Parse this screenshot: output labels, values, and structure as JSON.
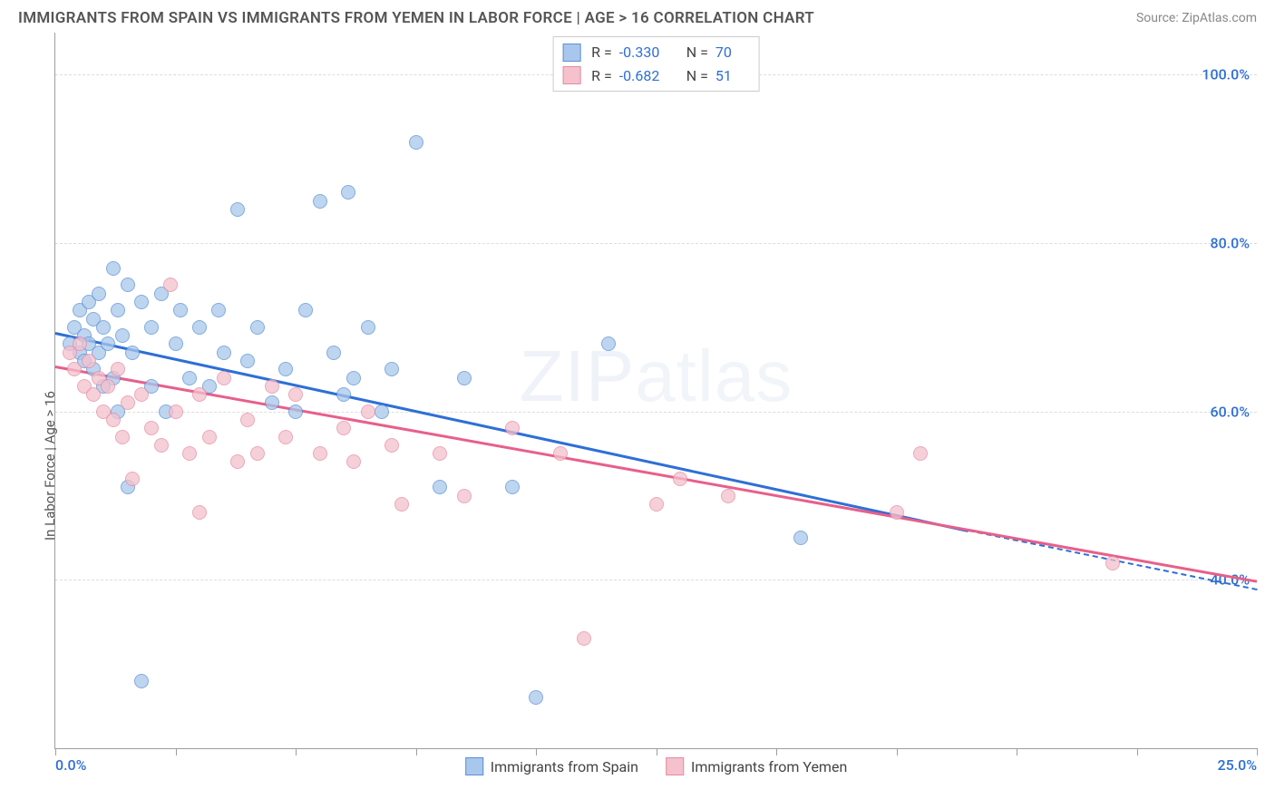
{
  "header": {
    "title": "IMMIGRANTS FROM SPAIN VS IMMIGRANTS FROM YEMEN IN LABOR FORCE | AGE > 16 CORRELATION CHART",
    "source": "Source: ZipAtlas.com"
  },
  "watermark": "ZIPatlas",
  "chart": {
    "type": "scatter",
    "background_color": "#ffffff",
    "grid_color": "#dddddd",
    "border_color": "#9e9e9e",
    "axis_label_color": "#555555",
    "tick_label_color": "#2e6fd6",
    "xlim": [
      0,
      25
    ],
    "ylim": [
      20,
      105
    ],
    "x_axis": {
      "min_label": "0.0%",
      "max_label": "25.0%",
      "tick_positions": [
        0,
        2.5,
        5,
        7.5,
        10,
        12.5,
        15,
        17.5,
        20,
        22.5,
        25
      ]
    },
    "y_axis": {
      "label": "In Labor Force | Age > 16",
      "gridlines": [
        40,
        60,
        80,
        100
      ],
      "tick_labels": [
        "40.0%",
        "60.0%",
        "80.0%",
        "100.0%"
      ]
    },
    "marker_radius": 8,
    "marker_border_width": 1.5,
    "marker_fill_opacity": 0.35,
    "series": [
      {
        "name": "Immigrants from Spain",
        "color_fill": "#a9c7ec",
        "color_stroke": "#5a8fd6",
        "trend_color": "#2e6fd6",
        "points": [
          [
            0.3,
            68
          ],
          [
            0.4,
            70
          ],
          [
            0.5,
            67
          ],
          [
            0.5,
            72
          ],
          [
            0.6,
            66
          ],
          [
            0.6,
            69
          ],
          [
            0.7,
            68
          ],
          [
            0.7,
            73
          ],
          [
            0.8,
            65
          ],
          [
            0.8,
            71
          ],
          [
            0.9,
            67
          ],
          [
            0.9,
            74
          ],
          [
            1.0,
            70
          ],
          [
            1.0,
            63
          ],
          [
            1.1,
            68
          ],
          [
            1.2,
            77
          ],
          [
            1.2,
            64
          ],
          [
            1.3,
            72
          ],
          [
            1.3,
            60
          ],
          [
            1.4,
            69
          ],
          [
            1.5,
            75
          ],
          [
            1.5,
            51
          ],
          [
            1.6,
            67
          ],
          [
            1.8,
            73
          ],
          [
            1.8,
            28
          ],
          [
            2.0,
            70
          ],
          [
            2.0,
            63
          ],
          [
            2.2,
            74
          ],
          [
            2.3,
            60
          ],
          [
            2.5,
            68
          ],
          [
            2.6,
            72
          ],
          [
            2.8,
            64
          ],
          [
            3.0,
            70
          ],
          [
            3.2,
            63
          ],
          [
            3.4,
            72
          ],
          [
            3.5,
            67
          ],
          [
            3.8,
            84
          ],
          [
            4.0,
            66
          ],
          [
            4.2,
            70
          ],
          [
            4.5,
            61
          ],
          [
            4.8,
            65
          ],
          [
            5.0,
            60
          ],
          [
            5.2,
            72
          ],
          [
            5.5,
            85
          ],
          [
            5.8,
            67
          ],
          [
            6.0,
            62
          ],
          [
            6.1,
            86
          ],
          [
            6.2,
            64
          ],
          [
            6.5,
            70
          ],
          [
            6.8,
            60
          ],
          [
            7.0,
            65
          ],
          [
            7.5,
            92
          ],
          [
            8.0,
            51
          ],
          [
            8.5,
            64
          ],
          [
            9.5,
            51
          ],
          [
            10.0,
            26
          ],
          [
            11.5,
            68
          ],
          [
            15.5,
            45
          ]
        ],
        "trendline": {
          "x1": 0,
          "y1": 69.5,
          "x2": 19,
          "y2": 46,
          "dashed_x2": 25,
          "dashed_y2": 39
        }
      },
      {
        "name": "Immigrants from Yemen",
        "color_fill": "#f4c1cd",
        "color_stroke": "#e68aa3",
        "trend_color": "#e85f8a",
        "points": [
          [
            0.3,
            67
          ],
          [
            0.4,
            65
          ],
          [
            0.5,
            68
          ],
          [
            0.6,
            63
          ],
          [
            0.7,
            66
          ],
          [
            0.8,
            62
          ],
          [
            0.9,
            64
          ],
          [
            1.0,
            60
          ],
          [
            1.1,
            63
          ],
          [
            1.2,
            59
          ],
          [
            1.3,
            65
          ],
          [
            1.4,
            57
          ],
          [
            1.5,
            61
          ],
          [
            1.6,
            52
          ],
          [
            1.8,
            62
          ],
          [
            2.0,
            58
          ],
          [
            2.2,
            56
          ],
          [
            2.4,
            75
          ],
          [
            2.5,
            60
          ],
          [
            2.8,
            55
          ],
          [
            3.0,
            62
          ],
          [
            3.0,
            48
          ],
          [
            3.2,
            57
          ],
          [
            3.5,
            64
          ],
          [
            3.8,
            54
          ],
          [
            4.0,
            59
          ],
          [
            4.2,
            55
          ],
          [
            4.5,
            63
          ],
          [
            4.8,
            57
          ],
          [
            5.0,
            62
          ],
          [
            5.5,
            55
          ],
          [
            6.0,
            58
          ],
          [
            6.2,
            54
          ],
          [
            6.5,
            60
          ],
          [
            7.0,
            56
          ],
          [
            7.2,
            49
          ],
          [
            8.0,
            55
          ],
          [
            8.5,
            50
          ],
          [
            9.5,
            58
          ],
          [
            10.5,
            55
          ],
          [
            11.0,
            33
          ],
          [
            12.5,
            49
          ],
          [
            13.0,
            52
          ],
          [
            14.0,
            50
          ],
          [
            17.5,
            48
          ],
          [
            18.0,
            55
          ],
          [
            22.0,
            42
          ]
        ],
        "trendline": {
          "x1": 0,
          "y1": 65.5,
          "x2": 25,
          "y2": 40
        }
      }
    ],
    "stats_legend": [
      {
        "swatch_fill": "#a9c7ec",
        "swatch_stroke": "#5a8fd6",
        "r_label": "R =",
        "r_value": "-0.330",
        "n_label": "N =",
        "n_value": "70"
      },
      {
        "swatch_fill": "#f4c1cd",
        "swatch_stroke": "#e68aa3",
        "r_label": "R =",
        "r_value": "-0.682",
        "n_label": "N =",
        "n_value": "51"
      }
    ],
    "footer_legend": [
      {
        "swatch_fill": "#a9c7ec",
        "swatch_stroke": "#5a8fd6",
        "label": "Immigrants from Spain"
      },
      {
        "swatch_fill": "#f4c1cd",
        "swatch_stroke": "#e68aa3",
        "label": "Immigrants from Yemen"
      }
    ]
  }
}
